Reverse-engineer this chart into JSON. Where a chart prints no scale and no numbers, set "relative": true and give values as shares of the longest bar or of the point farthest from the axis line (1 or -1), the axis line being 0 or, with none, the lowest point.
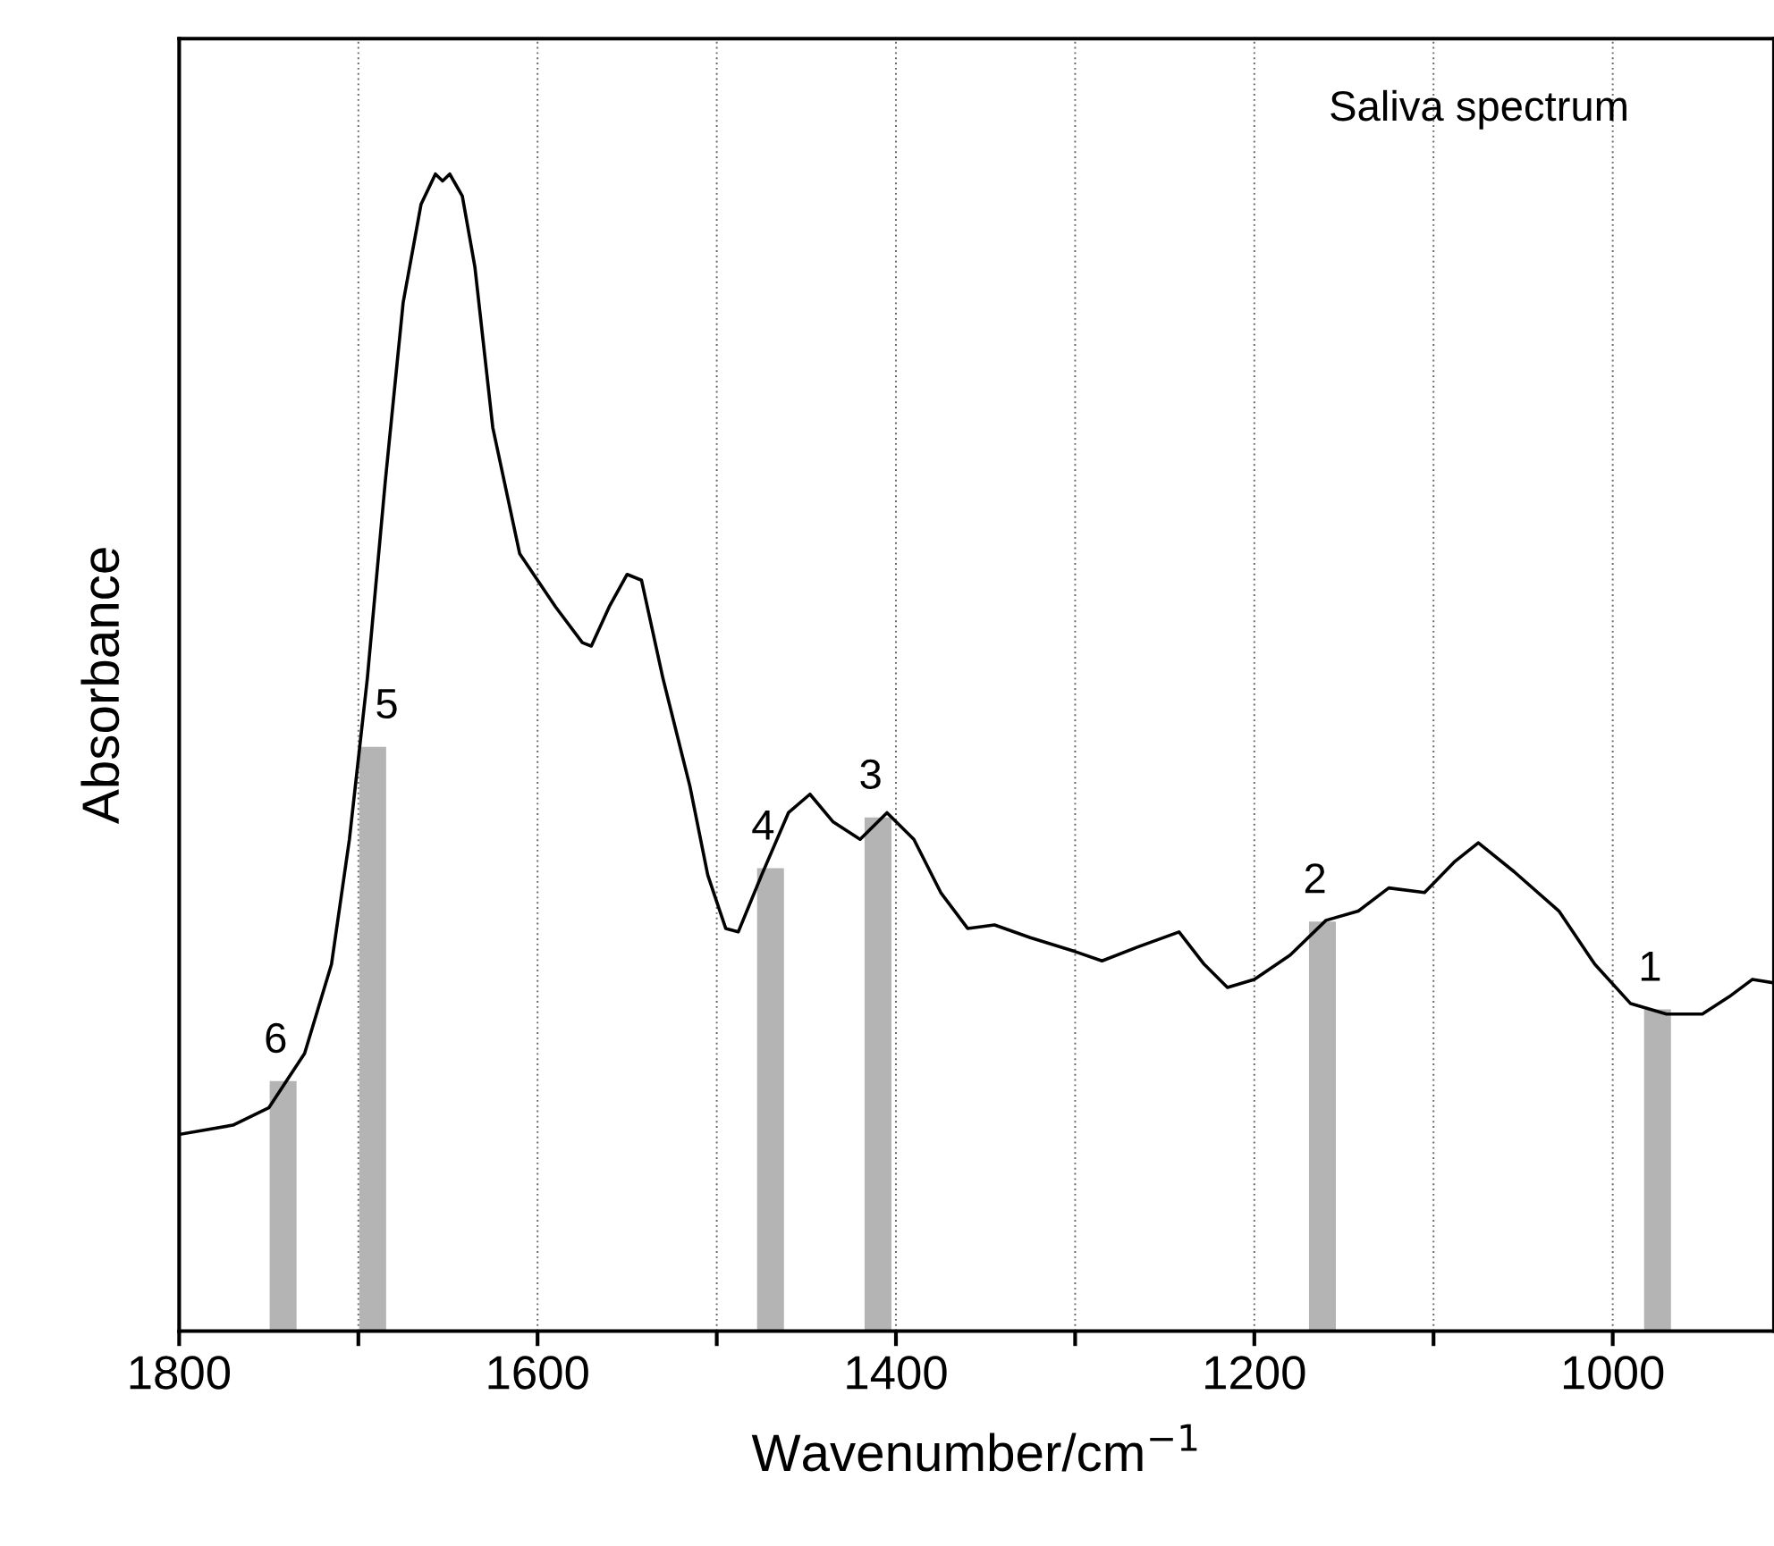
{
  "chart_data": {
    "type": "line",
    "relative": true,
    "xlabel": "Wavenumber/cm$^{−1}$",
    "ylabel": "Absorbance",
    "xlim": [
      1800,
      910
    ],
    "xticks": [
      1800,
      {
        "value": 1700,
        "label": null
      },
      1600,
      {
        "value": 1500,
        "label": null
      },
      1400,
      {
        "value": 1300,
        "label": null
      },
      1200,
      {
        "value": 1100,
        "label": null
      },
      1000
    ],
    "grid": "x",
    "tick_labels": "x",
    "marker": "none",
    "line_style": "solid",
    "annotations": [
      "Saliva spectrum",
      {
        "text": "6",
        "x": 1742,
        "y": 0.216
      },
      {
        "text": "5",
        "x": 1680,
        "y": 0.505
      },
      {
        "text": "4",
        "x": 1470,
        "y": 0.4
      },
      {
        "text": "3",
        "x": 1410,
        "y": 0.444
      },
      {
        "text": "2",
        "x": 1162,
        "y": 0.354
      },
      {
        "text": "1",
        "x": 975,
        "y": 0.278
      }
    ],
    "series": [
      {
        "type": "bar",
        "color": "#b4b4b4",
        "x": [
          1742,
          1692,
          1470,
          1410,
          1162,
          975
        ],
        "values": [
          0.216,
          0.505,
          0.4,
          0.444,
          0.354,
          0.278
        ]
      },
      {
        "color": "#000000",
        "x": [
          1800,
          1770,
          1750,
          1730,
          1715,
          1705,
          1695,
          1685,
          1675,
          1665,
          1657,
          1653,
          1649,
          1642,
          1635,
          1625,
          1610,
          1590,
          1575,
          1570,
          1560,
          1550,
          1542,
          1530,
          1515,
          1505,
          1495,
          1488,
          1475,
          1460,
          1448,
          1435,
          1420,
          1405,
          1390,
          1375,
          1360,
          1345,
          1325,
          1300,
          1285,
          1265,
          1242,
          1228,
          1215,
          1200,
          1180,
          1160,
          1142,
          1125,
          1105,
          1088,
          1075,
          1055,
          1030,
          1010,
          990,
          970,
          950,
          935,
          922,
          910
        ],
        "values": [
          0.17,
          0.178,
          0.193,
          0.24,
          0.317,
          0.425,
          0.564,
          0.734,
          0.889,
          0.974,
          1,
          0.994,
          1,
          0.981,
          0.92,
          0.781,
          0.672,
          0.626,
          0.595,
          0.592,
          0.626,
          0.654,
          0.649,
          0.564,
          0.471,
          0.394,
          0.348,
          0.345,
          0.394,
          0.448,
          0.464,
          0.44,
          0.425,
          0.448,
          0.425,
          0.379,
          0.348,
          0.351,
          0.34,
          0.328,
          0.32,
          0.332,
          0.345,
          0.317,
          0.297,
          0.304,
          0.325,
          0.355,
          0.363,
          0.383,
          0.379,
          0.406,
          0.422,
          0.397,
          0.363,
          0.317,
          0.283,
          0.274,
          0.274,
          0.289,
          0.304,
          0.301
        ]
      }
    ]
  }
}
